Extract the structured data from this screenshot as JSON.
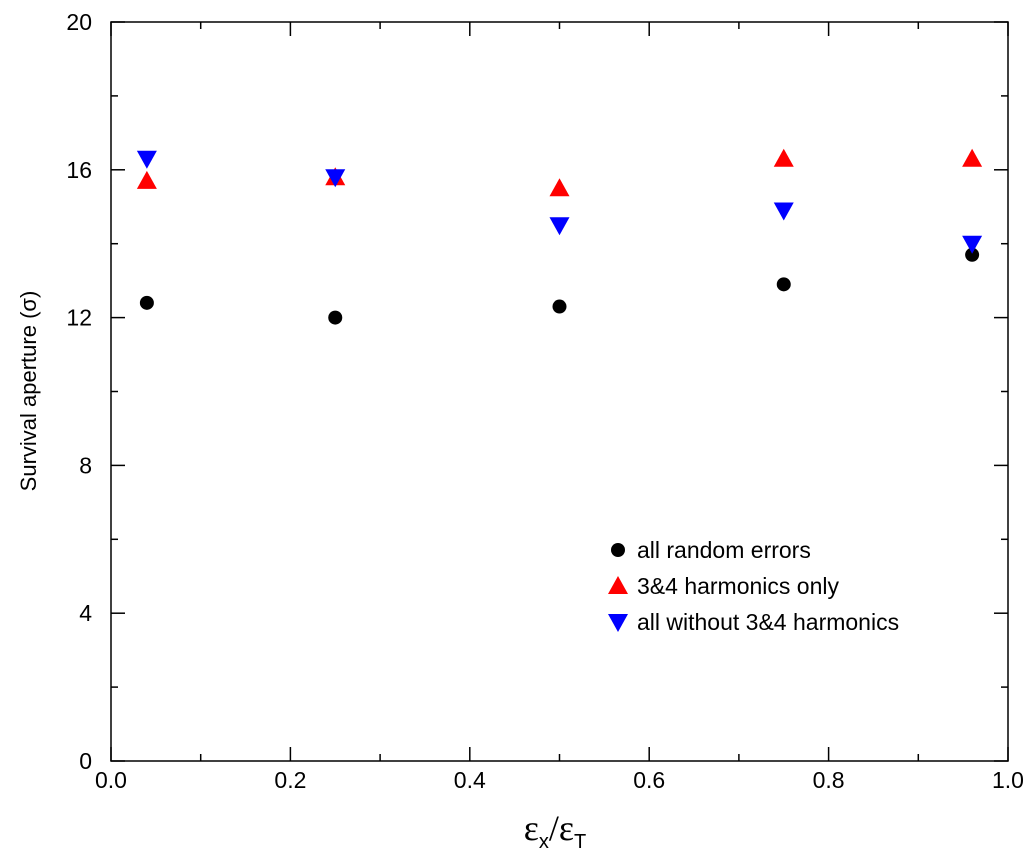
{
  "chart_data": {
    "type": "scatter",
    "xlabel": {
      "base1": "ε",
      "sub1": "x",
      "slash": "/",
      "base2": "ε",
      "sub2": "T"
    },
    "ylabel": "Survival aperture (σ)",
    "xlim": [
      0.0,
      1.0
    ],
    "ylim": [
      0,
      20
    ],
    "xticks": [
      0.0,
      0.2,
      0.4,
      0.6,
      0.8,
      1.0
    ],
    "xtick_labels": [
      "0.0",
      "0.2",
      "0.4",
      "0.6",
      "0.8",
      "1.0"
    ],
    "yticks": [
      0,
      4,
      8,
      12,
      16,
      20
    ],
    "ytick_labels": [
      "0",
      "4",
      "8",
      "12",
      "16",
      "20"
    ],
    "x_minor_step": 0.1,
    "y_minor_step": 2,
    "grid": false,
    "legend_position": "lower-right",
    "series": [
      {
        "name": "all random errors",
        "marker": "circle",
        "color": "#000000",
        "x": [
          0.04,
          0.25,
          0.5,
          0.75,
          0.96
        ],
        "y": [
          12.4,
          12.0,
          12.3,
          12.9,
          13.7
        ]
      },
      {
        "name": "3&4 harmonics only",
        "marker": "triangle-up",
        "color": "#ff0000",
        "x": [
          0.04,
          0.25,
          0.5,
          0.75,
          0.96
        ],
        "y": [
          15.7,
          15.8,
          15.5,
          16.3,
          16.3
        ]
      },
      {
        "name": "all without 3&4 harmonics",
        "marker": "triangle-down",
        "color": "#0000ff",
        "x": [
          0.04,
          0.25,
          0.5,
          0.75,
          0.96
        ],
        "y": [
          16.3,
          15.8,
          14.5,
          14.9,
          14.0
        ]
      }
    ]
  }
}
